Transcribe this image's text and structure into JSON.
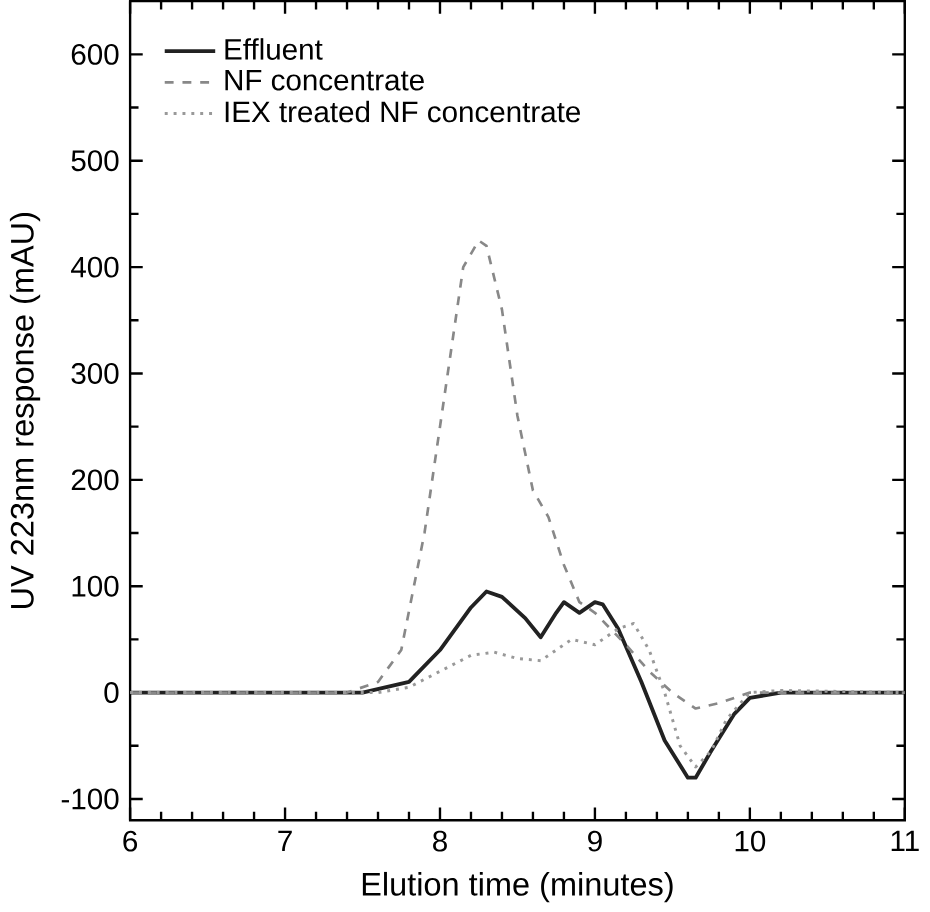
{
  "chart_data": {
    "type": "line",
    "xlabel": "Elution time (minutes)",
    "ylabel": "UV 223nm response (mAU)",
    "xlim": [
      6,
      11
    ],
    "ylim": [
      -120,
      650
    ],
    "xticks": [
      6,
      7,
      8,
      9,
      10,
      11
    ],
    "yticks": [
      -100,
      0,
      100,
      200,
      300,
      400,
      500,
      600
    ],
    "legend": "top left",
    "series": [
      {
        "name": "Effluent",
        "color": "#222222",
        "line_style": "solid",
        "x": [
          6,
          7.5,
          7.8,
          8.0,
          8.2,
          8.3,
          8.4,
          8.55,
          8.65,
          8.75,
          8.8,
          8.9,
          9.0,
          9.05,
          9.15,
          9.3,
          9.45,
          9.6,
          9.65,
          9.75,
          9.9,
          10.0,
          10.2,
          11
        ],
        "values": [
          0,
          0,
          10,
          40,
          80,
          95,
          90,
          70,
          52,
          75,
          85,
          75,
          85,
          83,
          60,
          10,
          -45,
          -80,
          -80,
          -55,
          -20,
          -5,
          0,
          0
        ]
      },
      {
        "name": "NF concentrate",
        "color": "#888888",
        "line_style": "dashed",
        "x": [
          6,
          7.4,
          7.6,
          7.75,
          7.9,
          8.05,
          8.15,
          8.25,
          8.3,
          8.4,
          8.5,
          8.6,
          8.7,
          8.8,
          8.9,
          9.0,
          9.1,
          9.2,
          9.35,
          9.5,
          9.65,
          9.8,
          10.0,
          11
        ],
        "values": [
          0,
          0,
          10,
          40,
          150,
          300,
          400,
          425,
          420,
          360,
          260,
          190,
          165,
          120,
          85,
          75,
          60,
          45,
          20,
          0,
          -15,
          -10,
          0,
          0
        ]
      },
      {
        "name": "IEX treated NF concentrate",
        "color": "#999999",
        "line_style": "dotted",
        "x": [
          6,
          7.6,
          7.8,
          8.0,
          8.2,
          8.35,
          8.5,
          8.65,
          8.85,
          9.0,
          9.15,
          9.25,
          9.35,
          9.45,
          9.55,
          9.65,
          9.75,
          9.85,
          10.0,
          10.2,
          11
        ],
        "values": [
          0,
          0,
          5,
          20,
          35,
          38,
          32,
          30,
          50,
          45,
          60,
          65,
          40,
          0,
          -50,
          -70,
          -55,
          -25,
          0,
          2,
          0
        ]
      }
    ]
  }
}
